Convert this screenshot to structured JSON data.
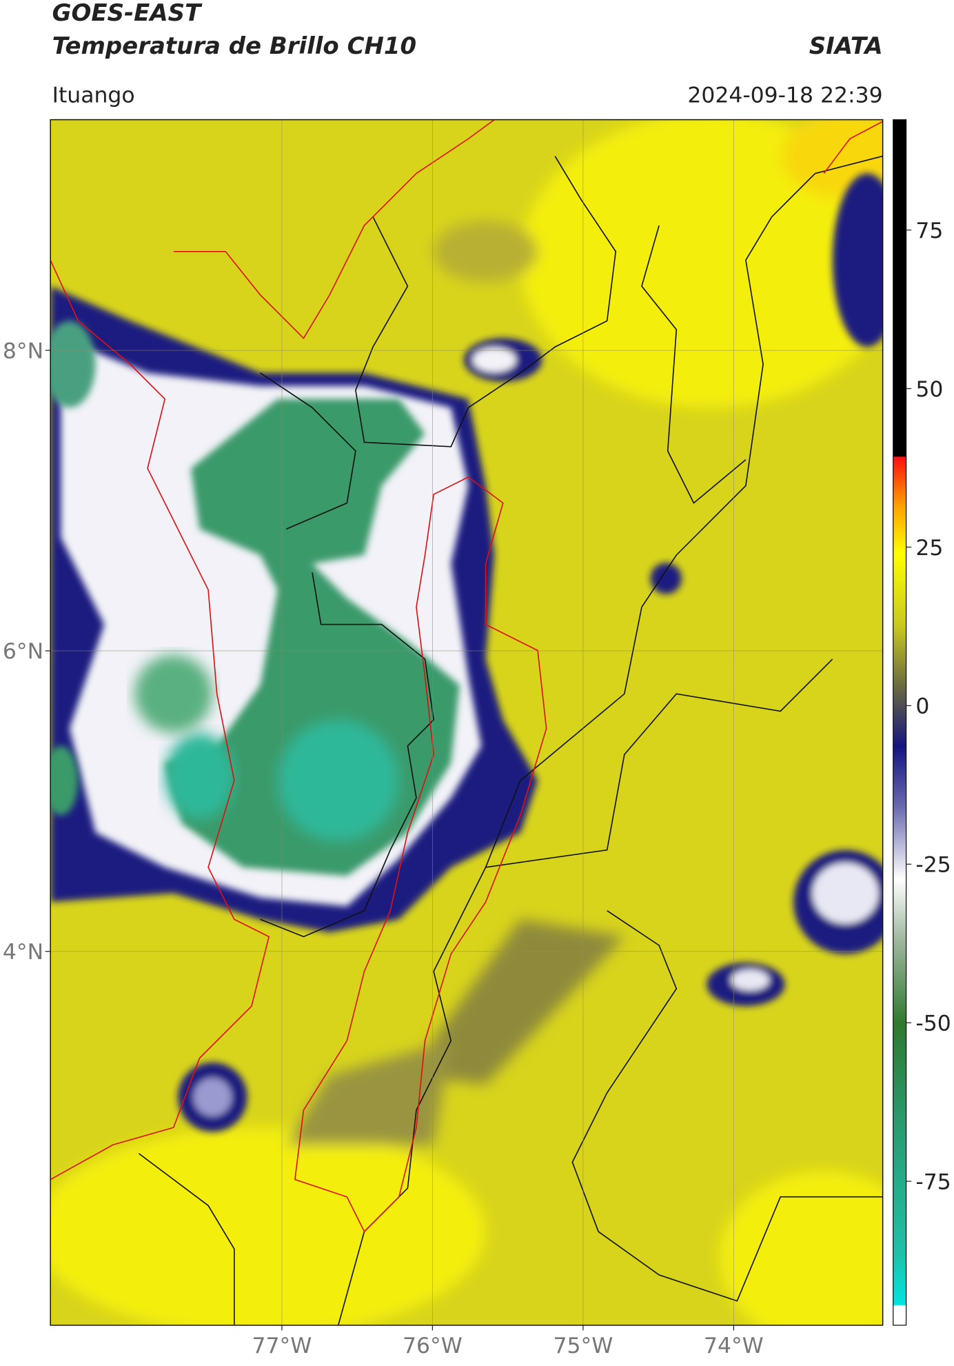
{
  "header": {
    "title": "GOES-EAST",
    "subtitle": "Temperatura de Brillo CH10",
    "brand": "SIATA",
    "location": "Ituango",
    "datetime": "2024-09-18 22:39"
  },
  "map": {
    "xlim": [
      -78.537,
      -73.01
    ],
    "ylim": [
      1.512,
      9.535
    ],
    "grid": true,
    "xticks": [
      {
        "value": -77,
        "label": "77°W"
      },
      {
        "value": -76,
        "label": "76°W"
      },
      {
        "value": -75,
        "label": "75°W"
      },
      {
        "value": -74,
        "label": "74°W"
      }
    ],
    "yticks": [
      {
        "value": 4,
        "label": "4°N"
      },
      {
        "value": 6,
        "label": "6°N"
      },
      {
        "value": 8,
        "label": "8°N"
      }
    ]
  },
  "colorbar": {
    "lim": [
      -97.7,
      92.4
    ],
    "ticks": [
      75,
      50,
      25,
      0,
      -25,
      -50,
      -75
    ]
  }
}
